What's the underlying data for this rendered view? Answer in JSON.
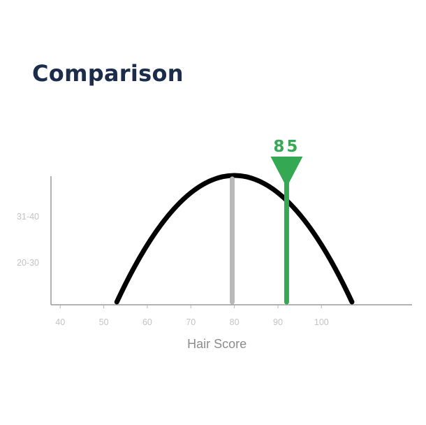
{
  "header": {
    "title": "Comparison"
  },
  "chart_data": {
    "type": "line",
    "title": "",
    "xlabel": "Hair Score",
    "ylabel": "",
    "x_ticks": [
      40,
      50,
      60,
      70,
      80,
      90,
      100
    ],
    "y_tick_labels": [
      "20-30",
      "31-40"
    ],
    "xlim": [
      39,
      120
    ],
    "curve": {
      "shape": "bell",
      "x_start": 53,
      "x_end": 107,
      "peak_x": 80,
      "color": "#000000"
    },
    "reference_line": {
      "x": 79.5,
      "color": "#b9b9b9"
    },
    "user_marker": {
      "x": 92,
      "label": "85",
      "color": "#34a853"
    },
    "grid": false,
    "legend": "none"
  }
}
